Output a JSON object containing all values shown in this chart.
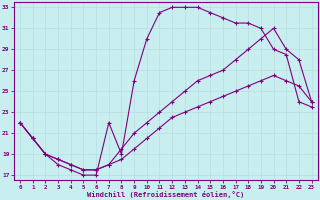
{
  "xlabel": "Windchill (Refroidissement éolien,°C)",
  "xlim": [
    -0.5,
    23.5
  ],
  "ylim": [
    16.5,
    33.5
  ],
  "xticks": [
    0,
    1,
    2,
    3,
    4,
    5,
    6,
    7,
    8,
    9,
    10,
    11,
    12,
    13,
    14,
    15,
    16,
    17,
    18,
    19,
    20,
    21,
    22,
    23
  ],
  "yticks": [
    17,
    19,
    21,
    23,
    25,
    27,
    29,
    31,
    33
  ],
  "bg_color": "#c8eef0",
  "line_color": "#800080",
  "grid_color": "#b8dde0",
  "series1_x": [
    0,
    1,
    2,
    3,
    4,
    5,
    6,
    7,
    8,
    9,
    10,
    11,
    12,
    13,
    14,
    15,
    16,
    17,
    18,
    19,
    20,
    21,
    22,
    23
  ],
  "series1_y": [
    22,
    20.5,
    19,
    18,
    17.5,
    17,
    17,
    22,
    19,
    26,
    30,
    32.5,
    33,
    33,
    33,
    32.5,
    32,
    31.5,
    31.5,
    31,
    29,
    28.5,
    24,
    23.5
  ],
  "series2_x": [
    0,
    1,
    2,
    3,
    4,
    5,
    6,
    7,
    8,
    9,
    10,
    11,
    12,
    13,
    14,
    15,
    16,
    17,
    18,
    19,
    20,
    21,
    22,
    23
  ],
  "series2_y": [
    22,
    20.5,
    19,
    18.5,
    18,
    17.5,
    17.5,
    18,
    18.5,
    19.5,
    20.5,
    21.5,
    22.5,
    23,
    23.5,
    24,
    24.5,
    25,
    25.5,
    26,
    26.5,
    26,
    25.5,
    24
  ],
  "series3_x": [
    0,
    1,
    2,
    3,
    4,
    5,
    6,
    7,
    8,
    9,
    10,
    11,
    12,
    13,
    14,
    15,
    16,
    17,
    18,
    19,
    20,
    21,
    22,
    23
  ],
  "series3_y": [
    22,
    20.5,
    19,
    18.5,
    18,
    17.5,
    17.5,
    18,
    19.5,
    21,
    22,
    23,
    24,
    25,
    26,
    26.5,
    27,
    28,
    29,
    30,
    31,
    29,
    28,
    24
  ]
}
